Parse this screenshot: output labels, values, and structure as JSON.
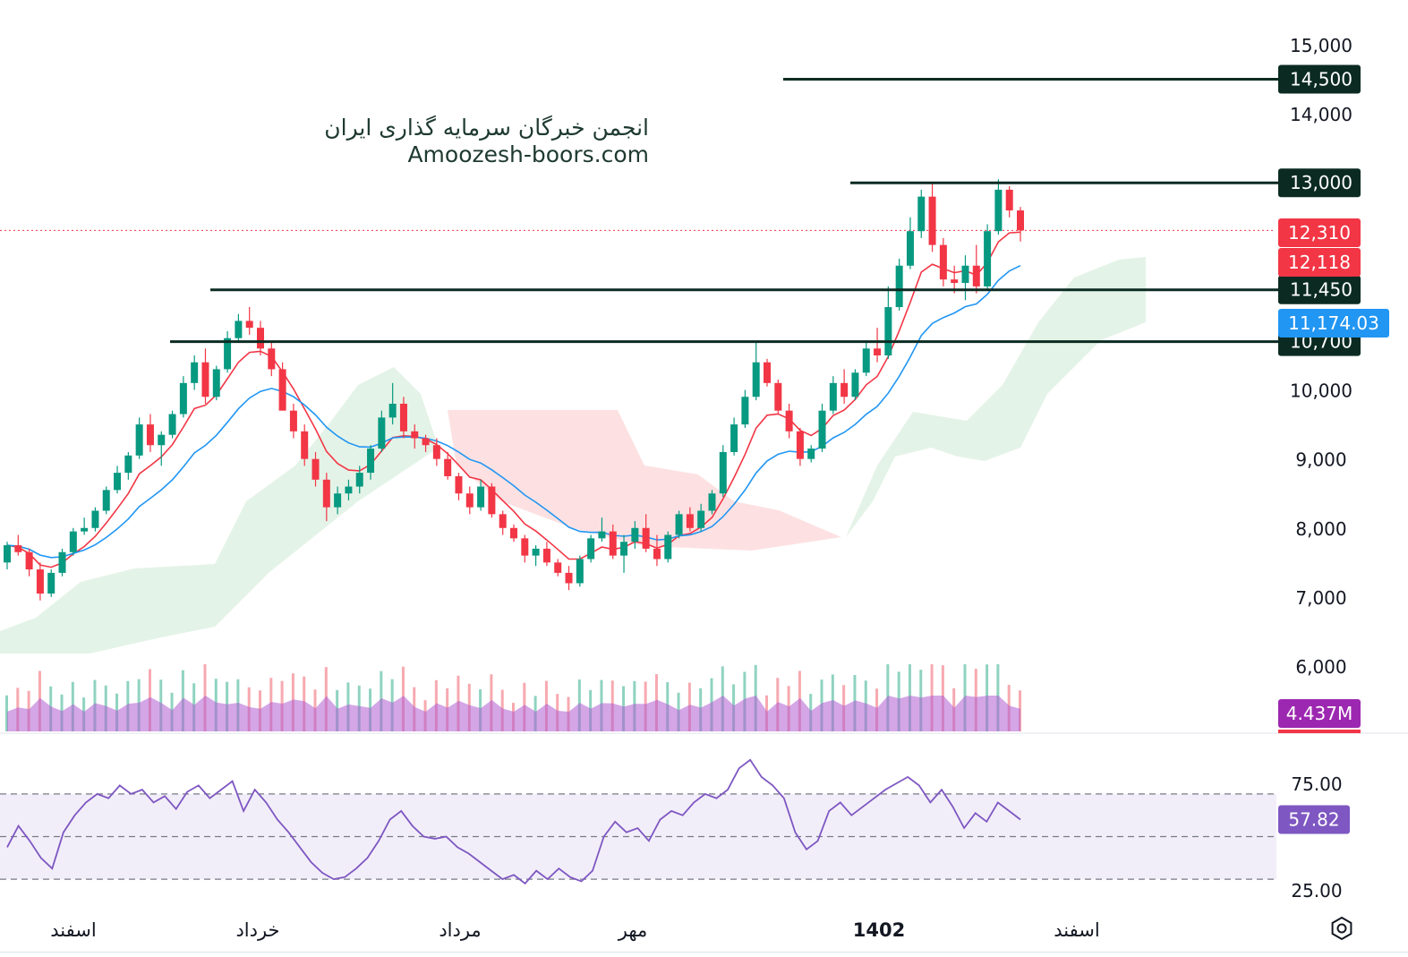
{
  "watermark": {
    "line1": "انجمن خبرگان سرمایه گذاری ایران",
    "line2": "Amoozesh-boors.com"
  },
  "chart_data": [
    {
      "type": "candlestick",
      "title": "",
      "y_axis_ticks": [
        "15,000",
        "14,000",
        "10,000",
        "9,000",
        "8,000",
        "7,000",
        "6,000"
      ],
      "y_tick_values": [
        15000,
        14000,
        10000,
        9000,
        8000,
        7000,
        6000
      ],
      "ylim": [
        5500,
        15300
      ],
      "x_axis_labels": [
        "اسفند",
        "خرداد",
        "مرداد",
        "مهر",
        "1402",
        "اسفند"
      ],
      "grid": false,
      "horizontal_levels": [
        {
          "value": 14500,
          "label": "14,500"
        },
        {
          "value": 13000,
          "label": "13,000"
        },
        {
          "value": 11450,
          "label": "11,450"
        },
        {
          "value": 10700,
          "label": "10,700"
        }
      ],
      "price_tags": [
        {
          "value": 12310,
          "label": "12,310",
          "color": "#f23645",
          "meaning": "last price"
        },
        {
          "value": 12118,
          "label": "12,118",
          "color": "#f23645",
          "meaning": "red moving average"
        },
        {
          "value": 11174.03,
          "label": "11,174.03",
          "color": "#2196f3",
          "meaning": "blue moving average"
        },
        {
          "value": 4437000,
          "label": "4.437M",
          "color": "#9c27b0",
          "meaning": "volume moving average"
        }
      ],
      "last_price": 12310,
      "colors": {
        "up": "#089981",
        "down": "#f23645",
        "ma_fast": "#f23645",
        "ma_slow": "#2196f3",
        "cloud_bull": "#d9eedd",
        "cloud_bear": "#fcd9db",
        "level": "#0b2b22",
        "volume_ma": "#b05dd1"
      },
      "series": [
        {
          "values": [
            [
              7500,
              7800,
              7400,
              7750
            ],
            [
              7750,
              7900,
              7600,
              7650
            ],
            [
              7650,
              7700,
              7300,
              7400
            ],
            [
              7400,
              7500,
              6950,
              7050
            ],
            [
              7050,
              7400,
              7000,
              7350
            ],
            [
              7350,
              7700,
              7300,
              7650
            ],
            [
              7650,
              8000,
              7600,
              7950
            ],
            [
              7950,
              8150,
              7900,
              8000
            ],
            [
              8000,
              8300,
              7950,
              8250
            ],
            [
              8250,
              8600,
              8200,
              8550
            ],
            [
              8550,
              8900,
              8500,
              8800
            ],
            [
              8800,
              9100,
              8700,
              9050
            ],
            [
              9050,
              9600,
              9000,
              9500
            ],
            [
              9500,
              9650,
              9100,
              9200
            ],
            [
              9200,
              9400,
              8900,
              9350
            ],
            [
              9350,
              9700,
              9300,
              9650
            ],
            [
              9650,
              10200,
              9600,
              10100
            ],
            [
              10100,
              10500,
              10000,
              10400
            ],
            [
              10400,
              10600,
              9800,
              9900
            ],
            [
              9900,
              10350,
              9850,
              10300
            ],
            [
              10300,
              10850,
              10250,
              10750
            ],
            [
              10750,
              11100,
              10700,
              11000
            ],
            [
              11000,
              11200,
              10800,
              10900
            ],
            [
              10900,
              11000,
              10500,
              10600
            ],
            [
              10600,
              10700,
              10200,
              10300
            ],
            [
              10300,
              10400,
              9800,
              9700
            ],
            [
              9700,
              9800,
              9300,
              9400
            ],
            [
              9400,
              9500,
              8900,
              9000
            ],
            [
              9000,
              9100,
              8600,
              8700
            ],
            [
              8700,
              8800,
              8100,
              8300
            ],
            [
              8300,
              8600,
              8200,
              8500
            ],
            [
              8500,
              8700,
              8400,
              8600
            ],
            [
              8600,
              8900,
              8500,
              8800
            ],
            [
              8800,
              9200,
              8700,
              9150
            ],
            [
              9150,
              9700,
              9100,
              9600
            ],
            [
              9600,
              10100,
              9500,
              9800
            ],
            [
              9800,
              9900,
              9300,
              9400
            ],
            [
              9400,
              9500,
              9150,
              9300
            ],
            [
              9300,
              9350,
              9100,
              9200
            ],
            [
              9200,
              9300,
              8900,
              9000
            ],
            [
              9000,
              9100,
              8700,
              8750
            ],
            [
              8750,
              8800,
              8400,
              8500
            ],
            [
              8500,
              8600,
              8200,
              8300
            ],
            [
              8300,
              8700,
              8250,
              8600
            ],
            [
              8600,
              8650,
              8150,
              8200
            ],
            [
              8200,
              8250,
              7900,
              8000
            ],
            [
              8000,
              8050,
              7800,
              7850
            ],
            [
              7850,
              7900,
              7500,
              7600
            ],
            [
              7600,
              7750,
              7450,
              7700
            ],
            [
              7700,
              7800,
              7450,
              7500
            ],
            [
              7500,
              7550,
              7300,
              7350
            ],
            [
              7350,
              7450,
              7100,
              7200
            ],
            [
              7200,
              7600,
              7150,
              7550
            ],
            [
              7550,
              7900,
              7500,
              7850
            ],
            [
              7850,
              8150,
              7800,
              7950
            ],
            [
              7950,
              8050,
              7550,
              7600
            ],
            [
              7600,
              7900,
              7350,
              7800
            ],
            [
              7800,
              8100,
              7700,
              8000
            ],
            [
              8000,
              8200,
              7650,
              7700
            ],
            [
              7700,
              7900,
              7450,
              7550
            ],
            [
              7550,
              7950,
              7500,
              7900
            ],
            [
              7900,
              8250,
              7850,
              8200
            ],
            [
              8200,
              8300,
              7950,
              8000
            ],
            [
              8000,
              8350,
              7950,
              8250
            ],
            [
              8250,
              8550,
              8200,
              8500
            ],
            [
              8500,
              9200,
              8450,
              9100
            ],
            [
              9100,
              9600,
              9050,
              9500
            ],
            [
              9500,
              10000,
              9450,
              9900
            ],
            [
              9900,
              10700,
              9850,
              10400
            ],
            [
              10400,
              10450,
              10050,
              10100
            ],
            [
              10100,
              10150,
              9650,
              9700
            ],
            [
              9700,
              9800,
              9300,
              9400
            ],
            [
              9400,
              9450,
              8900,
              9000
            ],
            [
              9000,
              9200,
              8950,
              9150
            ],
            [
              9150,
              9800,
              9100,
              9700
            ],
            [
              9700,
              10200,
              9650,
              10100
            ],
            [
              10100,
              10300,
              9800,
              9900
            ],
            [
              9900,
              10300,
              9850,
              10250
            ],
            [
              10250,
              10700,
              10200,
              10600
            ],
            [
              10600,
              10900,
              10400,
              10500
            ],
            [
              10500,
              11500,
              10450,
              11200
            ],
            [
              11200,
              11900,
              11150,
              11800
            ],
            [
              11800,
              12500,
              11750,
              12300
            ],
            [
              12300,
              12900,
              12200,
              12800
            ],
            [
              12800,
              13000,
              12000,
              12100
            ],
            [
              12100,
              12200,
              11500,
              11600
            ],
            [
              11600,
              11800,
              11400,
              11550
            ],
            [
              11550,
              11950,
              11300,
              11800
            ],
            [
              11800,
              12100,
              11400,
              11500
            ],
            [
              11500,
              12400,
              11450,
              12300
            ],
            [
              12300,
              13050,
              12250,
              12900
            ],
            [
              12900,
              12950,
              12500,
              12600
            ],
            [
              12600,
              12650,
              12150,
              12310
            ]
          ]
        }
      ],
      "volume_panel": {
        "last_volume_ma_label": "4.437M"
      },
      "rsi_panel": {
        "ticks": [
          "75.00",
          "25.00"
        ],
        "tick_values": [
          75,
          25
        ],
        "bands": [
          70,
          50,
          30
        ],
        "ylim": [
          20,
          95
        ],
        "last_value_label": "57.82",
        "values": [
          45,
          55,
          48,
          40,
          35,
          52,
          60,
          66,
          70,
          68,
          74,
          70,
          72,
          66,
          69,
          63,
          71,
          74,
          68,
          72,
          76,
          62,
          72,
          66,
          58,
          52,
          45,
          38,
          33,
          30,
          31,
          35,
          40,
          48,
          58,
          62,
          55,
          50,
          49,
          50,
          45,
          42,
          38,
          34,
          30,
          32,
          28,
          34,
          30,
          35,
          31,
          29,
          34,
          50,
          57,
          52,
          54,
          48,
          58,
          62,
          60,
          66,
          70,
          68,
          72,
          82,
          86,
          78,
          74,
          68,
          52,
          44,
          48,
          62,
          66,
          60,
          64,
          68,
          72,
          75,
          78,
          74,
          66,
          72,
          64,
          54,
          61,
          57,
          66,
          62,
          58
        ]
      }
    }
  ]
}
